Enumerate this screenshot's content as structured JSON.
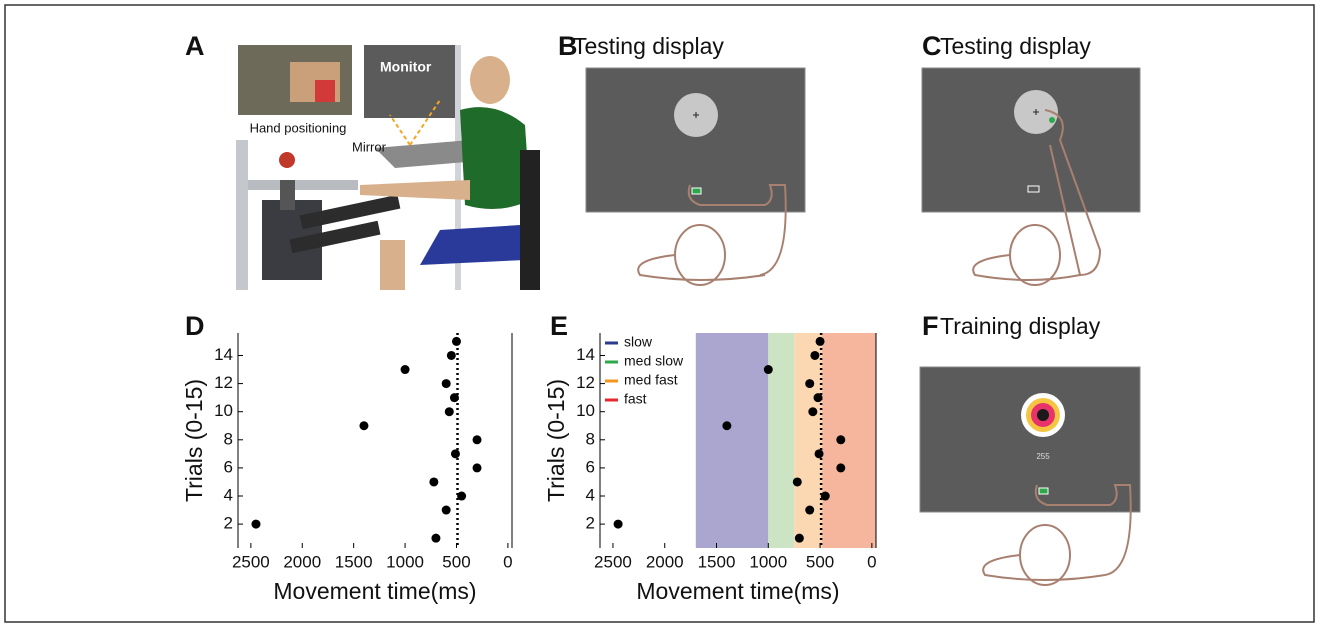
{
  "panels": {
    "A": {
      "label": "A",
      "hand_positioning": "Hand positioning",
      "monitor": "Monitor",
      "mirror": "Mirror"
    },
    "B": {
      "label": "B",
      "title": "Testing display"
    },
    "C": {
      "label": "C",
      "title": "Testing display"
    },
    "F": {
      "label": "F",
      "title": "Training display",
      "score": "255"
    }
  },
  "chart_data": [
    {
      "type": "scatter",
      "panel_label": "D",
      "xlabel": "Movement time(ms)",
      "ylabel": "Trials (0-15)",
      "x": [
        500,
        550,
        1000,
        600,
        520,
        570,
        1400,
        300,
        510,
        300,
        720,
        450,
        600,
        2450,
        700
      ],
      "values": [
        15,
        14,
        13,
        12,
        11,
        10,
        9,
        8,
        7,
        6,
        5,
        4,
        3,
        2,
        1
      ],
      "color": "#000000",
      "xlim": [
        2625,
        -40
      ],
      "ylim": [
        0.3,
        15.6
      ],
      "xticks": [
        2500,
        2000,
        1500,
        1000,
        500,
        0
      ],
      "yticks": [
        2,
        4,
        6,
        8,
        10,
        12,
        14
      ],
      "reference_line": 490
    },
    {
      "type": "scatter",
      "panel_label": "E",
      "xlabel": "Movement time(ms)",
      "ylabel": "Trials (0-15)",
      "x": [
        500,
        550,
        1000,
        600,
        520,
        570,
        1400,
        300,
        510,
        300,
        720,
        450,
        600,
        2450,
        700
      ],
      "values": [
        15,
        14,
        13,
        12,
        11,
        10,
        9,
        8,
        7,
        6,
        5,
        4,
        3,
        2,
        1
      ],
      "color": "#000000",
      "xlim": [
        2625,
        -40
      ],
      "ylim": [
        0.3,
        15.6
      ],
      "xticks": [
        2500,
        2000,
        1500,
        1000,
        500,
        0
      ],
      "yticks": [
        2,
        4,
        6,
        8,
        10,
        12,
        14
      ],
      "reference_line": 490,
      "bands": [
        {
          "name": "slow",
          "legend_color": "#2b3a8c",
          "fill": "#aaa6cf",
          "range": [
            1700,
            1000
          ]
        },
        {
          "name": "med slow",
          "legend_color": "#2ca84a",
          "fill": "#cde4c4",
          "range": [
            1000,
            750
          ]
        },
        {
          "name": "med fast",
          "legend_color": "#f7941d",
          "fill": "#fcd8b2",
          "range": [
            750,
            480
          ]
        },
        {
          "name": "fast",
          "legend_color": "#e8262b",
          "fill": "#f6b59d",
          "range": [
            480,
            -40
          ]
        }
      ]
    }
  ]
}
